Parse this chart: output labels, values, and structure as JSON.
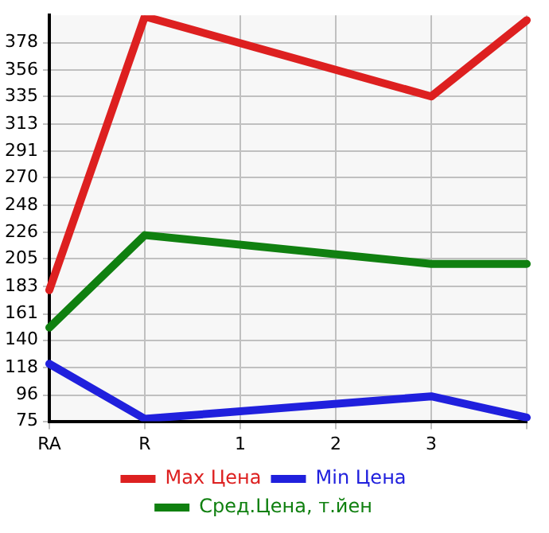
{
  "chart_data": {
    "type": "line",
    "categories": [
      "RA",
      "R",
      "1",
      "2",
      "3",
      null
    ],
    "series": [
      {
        "name": "Max Цена",
        "color": "#dd2020",
        "values": [
          180,
          399,
          null,
          null,
          335,
          396
        ]
      },
      {
        "name": "Min Цена",
        "color": "#2020dd",
        "values": [
          121,
          77,
          null,
          null,
          95,
          78
        ]
      },
      {
        "name": "Сред.Цена, т.йен",
        "color": "#108010",
        "values": [
          150,
          224,
          null,
          null,
          201,
          201
        ]
      }
    ],
    "ylim": [
      75,
      400
    ],
    "yticks": [
      75,
      96,
      118,
      140,
      161,
      183,
      205,
      226,
      248,
      270,
      291,
      313,
      335,
      356,
      378
    ],
    "grid": true,
    "legend": "bottom",
    "marker": "none",
    "line_style": "solid"
  }
}
